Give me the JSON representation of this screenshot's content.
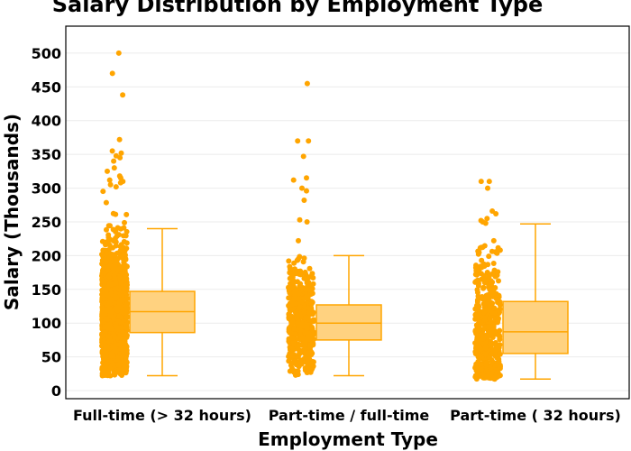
{
  "chart_data": {
    "type": "box",
    "title": "Salary Distribution by Employment Type",
    "xlabel": "Employment Type",
    "ylabel": "Salary (Thousands)",
    "ylim": [
      -12,
      540
    ],
    "yticks": [
      0,
      50,
      100,
      150,
      200,
      250,
      300,
      350,
      400,
      450,
      500
    ],
    "grid": true,
    "colors": {
      "marker": "#FFA500",
      "box_fill": "#FFD280",
      "box_line": "#FFA500",
      "grid": "#ebebeb",
      "frame": "#000000"
    },
    "categories": [
      "Full-time (> 32 hours)",
      "Part-time / full-time",
      "Part-time ( 32 hours)"
    ],
    "boxes": [
      {
        "name": "Full-time (> 32 hours)",
        "whisker_low": 22,
        "q1": 86,
        "median": 117,
        "q3": 147,
        "whisker_high": 240,
        "points_range": [
          22,
          300
        ],
        "points_count": 1500,
        "outliers": [
          500,
          470,
          438,
          372,
          355,
          352,
          348,
          345,
          340,
          330,
          325,
          318,
          315,
          312,
          310,
          308,
          305,
          302
        ]
      },
      {
        "name": "Part-time / full-time",
        "whisker_low": 22,
        "q1": 75,
        "median": 100,
        "q3": 127,
        "whisker_high": 200,
        "points_range": [
          22,
          200
        ],
        "points_count": 450,
        "outliers": [
          455,
          370,
          370,
          347,
          315,
          312,
          300,
          296,
          282,
          253,
          250,
          222
        ]
      },
      {
        "name": "Part-time ( 32 hours)",
        "whisker_low": 17,
        "q1": 55,
        "median": 87,
        "q3": 132,
        "whisker_high": 247,
        "points_range": [
          17,
          230
        ],
        "points_count": 500,
        "outliers": [
          310,
          310,
          300,
          266,
          262,
          255,
          252,
          250,
          248
        ]
      }
    ]
  }
}
